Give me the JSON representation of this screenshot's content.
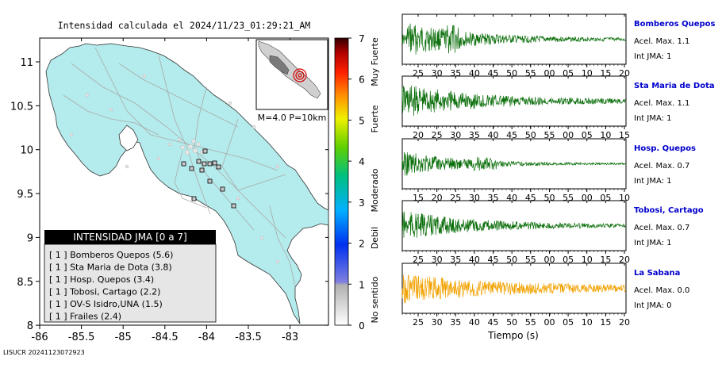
{
  "map": {
    "title": "Intensidad calculada el 2024/11/23_01:29:21_AM",
    "event_label": "M=4.0 P=10km",
    "lon_ticks": [
      "-86",
      "-85.5",
      "-85",
      "-84.5",
      "-84",
      "-83.5",
      "-83"
    ],
    "lat_ticks": [
      "11",
      "10.5",
      "10",
      "9.5",
      "9",
      "8.5",
      "8"
    ],
    "legend": {
      "title": "INTENSIDAD JMA [0 a 7]",
      "items": [
        "[ 1 ]  Bomberos Quepos (5.6)",
        "[ 1 ]  Sta Maria de Dota (3.8)",
        "[ 1 ]  Hosp. Quepos (3.4)",
        "[ 1 ]  Tobosi, Cartago (2.2)",
        "[ 1 ]  OV-S Isidro,UNA (1.5)",
        "[ 1 ]  Frailes (2.4)"
      ]
    },
    "footer": "LISUCR 20241123072923"
  },
  "colorbar": {
    "ticks": [
      "7",
      "6",
      "5",
      "4",
      "3",
      "2",
      "1",
      "0"
    ],
    "labels": [
      "Muy Fuerte",
      "Fuerte",
      "Moderado",
      "Debil",
      "No sentido"
    ]
  },
  "colors": {
    "ocean": "#ffffff",
    "land": "#b3ecec",
    "trace_green": "#0a6e0a",
    "trace_orange": "#f2a200",
    "station_name": "#0000cc"
  },
  "chart_data": {
    "type": "line",
    "xlabel": "Tiempo (s)",
    "ylabel": "",
    "series": [
      {
        "name": "Bomberos Quepos",
        "accel_label": "Acel. Max. 1.1",
        "int_label": "Int JMA: 1",
        "tick_labels": [
          "25",
          "30",
          "35",
          "40",
          "45",
          "50",
          "55",
          "00",
          "05",
          "10",
          "15",
          "20"
        ]
      },
      {
        "name": "Sta Maria de Dota",
        "accel_label": "Acel. Max. 1.1",
        "int_label": "Int JMA: 1",
        "tick_labels": [
          "20",
          "25",
          "30",
          "35",
          "40",
          "45",
          "50",
          "55",
          "00",
          "05",
          "10",
          "15"
        ]
      },
      {
        "name": "Hosp. Quepos",
        "accel_label": "Acel. Max. 0.7",
        "int_label": "Int JMA: 1",
        "tick_labels": [
          "15",
          "20",
          "25",
          "30",
          "35",
          "40",
          "45",
          "50",
          "55",
          "00",
          "05",
          "10"
        ]
      },
      {
        "name": "Tobosi, Cartago",
        "accel_label": "Acel. Max. 0.7",
        "int_label": "Int JMA: 1",
        "tick_labels": [
          "25",
          "30",
          "35",
          "40",
          "45",
          "50",
          "55",
          "00",
          "05",
          "10",
          "15",
          "20"
        ]
      },
      {
        "name": "La Sabana",
        "accel_label": "Acel. Max. 0.0",
        "int_label": "Int JMA: 0",
        "tick_labels": [
          "25",
          "30",
          "35",
          "40",
          "45",
          "50",
          "55",
          "00",
          "05",
          "10",
          "15",
          "20"
        ]
      }
    ]
  }
}
